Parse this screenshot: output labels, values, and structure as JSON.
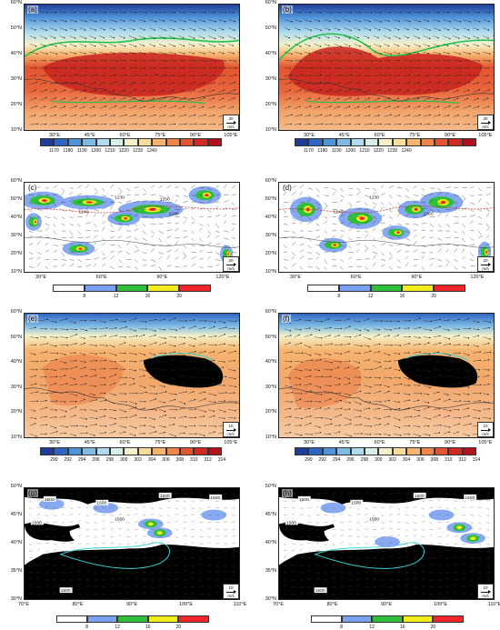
{
  "panels": [
    {
      "label": "(a)",
      "yticks": [
        "60°N",
        "50°N",
        "40°N",
        "30°N",
        "20°N",
        "10°N"
      ],
      "xticks": [
        "30°E",
        "45°E",
        "60°E",
        "75°E",
        "90°E",
        "105°E"
      ],
      "ref": {
        "value": "30",
        "unit": "m/s"
      },
      "contour_labels": []
    },
    {
      "label": "(b)",
      "yticks": [
        "60°N",
        "50°N",
        "40°N",
        "30°N",
        "20°N",
        "10°N"
      ],
      "xticks": [
        "30°E",
        "45°E",
        "60°E",
        "75°E",
        "90°E",
        "105°E"
      ],
      "ref": {
        "value": "30",
        "unit": "m/s"
      },
      "contour_labels": []
    },
    {
      "label": "(c)",
      "yticks": [
        "60°N",
        "50°N",
        "40°N",
        "30°N",
        "20°N",
        "10°N"
      ],
      "xticks": [
        "30°E",
        "60°E",
        "90°E",
        "120°E"
      ],
      "ref": {
        "value": "20",
        "unit": "m/s"
      },
      "contour_labels": [
        "1230",
        "1240",
        "1240",
        "1250"
      ]
    },
    {
      "label": "(d)",
      "yticks": [
        "60°N",
        "50°N",
        "40°N",
        "30°N",
        "20°N",
        "10°N"
      ],
      "xticks": [
        "30°E",
        "60°E",
        "90°E",
        "120°E"
      ],
      "ref": {
        "value": "20",
        "unit": "m/s"
      },
      "contour_labels": [
        "1230",
        "1240",
        "1260"
      ]
    },
    {
      "label": "(e)",
      "yticks": [
        "60°N",
        "50°N",
        "40°N",
        "30°N",
        "20°N",
        "10°N"
      ],
      "xticks": [
        "30°E",
        "45°E",
        "60°E",
        "75°E",
        "90°E",
        "105°E"
      ],
      "ref": {
        "value": "10",
        "unit": "m/s"
      },
      "contour_labels": []
    },
    {
      "label": "(f)",
      "yticks": [
        "60°N",
        "50°N",
        "40°N",
        "30°N",
        "20°N",
        "10°N"
      ],
      "xticks": [
        "30°E",
        "45°E",
        "60°E",
        "75°E",
        "90°E",
        "105°E"
      ],
      "ref": {
        "value": "10",
        "unit": "m/s"
      },
      "contour_labels": []
    },
    {
      "label": "(g)",
      "yticks": [
        "50°N",
        "45°N",
        "40°N",
        "35°N",
        "30°N"
      ],
      "xticks": [
        "70°E",
        "80°E",
        "90°E",
        "100°E",
        "110°E"
      ],
      "ref": {
        "value": "10",
        "unit": "m/s"
      },
      "contour_labels": [
        "1500",
        "1500",
        "1500",
        "1500",
        "1500",
        "1500",
        "1500"
      ]
    },
    {
      "label": "(h)",
      "yticks": [
        "50°N",
        "45°N",
        "40°N",
        "35°N",
        "30°N"
      ],
      "xticks": [
        "70°E",
        "80°E",
        "90°E",
        "100°E",
        "110°E"
      ],
      "ref": {
        "value": "10",
        "unit": "m/s"
      },
      "contour_labels": [
        "1500",
        "1500",
        "1500",
        "1500",
        "1500",
        "1500",
        "1500"
      ]
    }
  ],
  "colorbars": {
    "height": {
      "ticks": [
        "1170",
        "1180",
        "1190",
        "1200",
        "1210",
        "1220",
        "1230",
        "1240"
      ],
      "colors": [
        "#1f3c99",
        "#2f65c2",
        "#4f92d8",
        "#7dbbe5",
        "#aedcee",
        "#d8efe7",
        "#f5f1c9",
        "#fadd9a",
        "#f6b36e",
        "#ee8549",
        "#e25530",
        "#cc2a22",
        "#b0131f"
      ]
    },
    "wind": {
      "ticks": [
        "8",
        "12",
        "16",
        "20"
      ],
      "colors": [
        "#ffffff",
        "#7aa0f0",
        "#2fbf3b",
        "#f2ee1c",
        "#f0262a"
      ]
    },
    "temperature": {
      "ticks": [
        "290",
        "292",
        "294",
        "296",
        "298",
        "300",
        "302",
        "304",
        "306",
        "308",
        "310",
        "312",
        "314"
      ],
      "colors": [
        "#1f3c99",
        "#2f65c2",
        "#4f92d8",
        "#7dbbe5",
        "#aedcee",
        "#d8efe7",
        "#f5f1c9",
        "#fadd9a",
        "#f6b36e",
        "#ee8549",
        "#e25530",
        "#cc2a22",
        "#b0131f"
      ]
    }
  }
}
